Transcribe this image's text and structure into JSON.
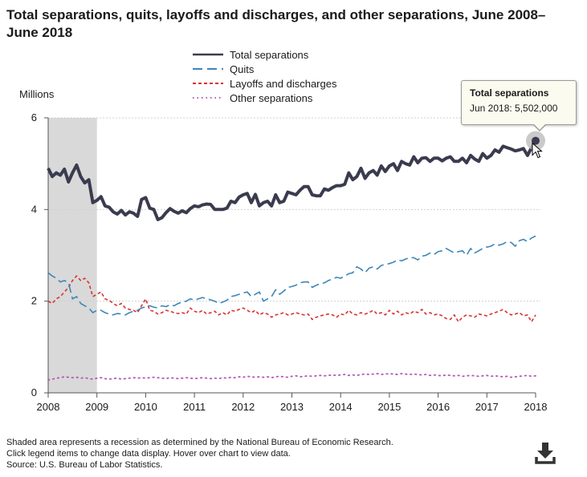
{
  "title": "Total separations, quits, layoffs and discharges, and other separations, June 2008–June 2018",
  "chart_data": {
    "type": "line",
    "ylabel": "Millions",
    "ylim": [
      0,
      6
    ],
    "xlim": [
      2008,
      2018
    ],
    "y_ticks": [
      "0",
      "2",
      "4",
      "6"
    ],
    "x_ticks": [
      "2008",
      "2009",
      "2010",
      "2011",
      "2012",
      "2013",
      "2014",
      "2015",
      "2016",
      "2017",
      "2018"
    ],
    "recession": {
      "start": 2008.0,
      "end": 2009.0
    },
    "series": [
      {
        "name": "Total separations",
        "color": "#3b3b4f",
        "values": [
          4.9,
          4.72,
          4.8,
          4.75,
          4.88,
          4.6,
          4.8,
          4.97,
          4.72,
          4.58,
          4.65,
          4.15,
          4.2,
          4.28,
          4.08,
          4.05,
          3.95,
          3.9,
          3.98,
          3.88,
          3.95,
          3.92,
          3.85,
          4.22,
          4.26,
          4.03,
          4.0,
          3.78,
          3.82,
          3.93,
          4.02,
          3.96,
          3.92,
          3.97,
          3.93,
          4.02,
          4.08,
          4.06,
          4.1,
          4.12,
          4.11,
          4.0,
          4.0,
          4.0,
          4.03,
          4.18,
          4.15,
          4.27,
          4.32,
          4.35,
          4.15,
          4.33,
          4.08,
          4.15,
          4.18,
          4.08,
          4.32,
          4.15,
          4.18,
          4.38,
          4.35,
          4.32,
          4.42,
          4.5,
          4.5,
          4.32,
          4.3,
          4.3,
          4.45,
          4.42,
          4.48,
          4.52,
          4.52,
          4.55,
          4.8,
          4.65,
          4.72,
          4.9,
          4.68,
          4.8,
          4.85,
          4.75,
          4.95,
          4.83,
          4.95,
          5.0,
          4.85,
          5.05,
          5.0,
          4.97,
          5.15,
          5.02,
          5.12,
          5.13,
          5.05,
          5.12,
          5.12,
          5.06,
          5.12,
          5.15,
          5.05,
          5.05,
          5.12,
          5.02,
          5.18,
          5.1,
          5.05,
          5.22,
          5.12,
          5.18,
          5.3,
          5.25,
          5.38,
          5.35,
          5.32,
          5.28,
          5.3,
          5.33,
          5.18,
          5.35,
          5.5
        ]
      },
      {
        "name": "Quits",
        "color": "#3c87b8",
        "values": [
          2.62,
          2.55,
          2.5,
          2.42,
          2.45,
          2.4,
          2.05,
          2.1,
          1.95,
          1.9,
          1.85,
          1.75,
          1.8,
          1.8,
          1.75,
          1.72,
          1.7,
          1.73,
          1.72,
          1.7,
          1.75,
          1.78,
          1.8,
          1.85,
          1.88,
          1.9,
          1.87,
          1.85,
          1.9,
          1.88,
          1.92,
          1.9,
          1.95,
          1.98,
          2.0,
          2.05,
          2.02,
          2.05,
          2.08,
          2.05,
          2.03,
          2.0,
          1.95,
          1.98,
          2.02,
          2.1,
          2.12,
          2.15,
          2.18,
          2.2,
          2.1,
          2.15,
          2.2,
          2.0,
          2.05,
          2.1,
          2.25,
          2.15,
          2.22,
          2.3,
          2.32,
          2.35,
          2.4,
          2.42,
          2.42,
          2.3,
          2.35,
          2.38,
          2.4,
          2.45,
          2.48,
          2.52,
          2.5,
          2.55,
          2.6,
          2.62,
          2.75,
          2.7,
          2.62,
          2.72,
          2.75,
          2.7,
          2.78,
          2.8,
          2.82,
          2.85,
          2.9,
          2.88,
          2.92,
          2.95,
          2.95,
          2.9,
          2.98,
          3.0,
          3.05,
          3.02,
          3.08,
          3.1,
          3.15,
          3.1,
          3.05,
          3.08,
          3.1,
          3.0,
          3.15,
          3.05,
          3.1,
          3.15,
          3.18,
          3.2,
          3.25,
          3.22,
          3.25,
          3.3,
          3.28,
          3.2,
          3.32,
          3.35,
          3.3,
          3.38,
          3.42
        ]
      },
      {
        "name": "Layoffs and discharges",
        "color": "#d93131",
        "values": [
          2.0,
          1.95,
          2.05,
          2.1,
          2.2,
          2.3,
          2.45,
          2.55,
          2.45,
          2.5,
          2.4,
          2.1,
          2.15,
          2.2,
          2.05,
          2.02,
          1.95,
          1.9,
          1.95,
          1.85,
          1.82,
          1.8,
          1.75,
          1.9,
          2.05,
          1.8,
          1.78,
          1.72,
          1.75,
          1.8,
          1.78,
          1.75,
          1.73,
          1.75,
          1.72,
          1.85,
          1.78,
          1.75,
          1.8,
          1.72,
          1.75,
          1.78,
          1.7,
          1.75,
          1.7,
          1.8,
          1.78,
          1.82,
          1.85,
          1.8,
          1.75,
          1.8,
          1.7,
          1.75,
          1.72,
          1.65,
          1.7,
          1.72,
          1.75,
          1.7,
          1.72,
          1.75,
          1.72,
          1.7,
          1.72,
          1.6,
          1.65,
          1.68,
          1.7,
          1.72,
          1.7,
          1.65,
          1.72,
          1.7,
          1.8,
          1.72,
          1.7,
          1.75,
          1.72,
          1.75,
          1.8,
          1.72,
          1.75,
          1.7,
          1.8,
          1.72,
          1.78,
          1.7,
          1.75,
          1.72,
          1.78,
          1.75,
          1.82,
          1.72,
          1.75,
          1.7,
          1.72,
          1.68,
          1.62,
          1.6,
          1.7,
          1.55,
          1.65,
          1.7,
          1.68,
          1.65,
          1.72,
          1.7,
          1.68,
          1.72,
          1.75,
          1.78,
          1.82,
          1.75,
          1.7,
          1.72,
          1.75,
          1.68,
          1.7,
          1.55,
          1.7
        ]
      },
      {
        "name": "Other separations",
        "color": "#b854b8",
        "values": [
          0.28,
          0.3,
          0.32,
          0.33,
          0.35,
          0.34,
          0.33,
          0.34,
          0.32,
          0.33,
          0.31,
          0.3,
          0.32,
          0.33,
          0.31,
          0.3,
          0.31,
          0.32,
          0.3,
          0.31,
          0.32,
          0.33,
          0.32,
          0.33,
          0.32,
          0.33,
          0.34,
          0.33,
          0.32,
          0.31,
          0.33,
          0.32,
          0.31,
          0.32,
          0.33,
          0.32,
          0.31,
          0.32,
          0.33,
          0.32,
          0.31,
          0.32,
          0.31,
          0.33,
          0.32,
          0.34,
          0.33,
          0.35,
          0.34,
          0.36,
          0.35,
          0.34,
          0.35,
          0.34,
          0.35,
          0.33,
          0.35,
          0.36,
          0.35,
          0.34,
          0.36,
          0.37,
          0.35,
          0.36,
          0.37,
          0.36,
          0.37,
          0.38,
          0.37,
          0.38,
          0.39,
          0.38,
          0.39,
          0.4,
          0.38,
          0.39,
          0.38,
          0.4,
          0.41,
          0.4,
          0.41,
          0.42,
          0.4,
          0.41,
          0.42,
          0.41,
          0.4,
          0.42,
          0.41,
          0.4,
          0.41,
          0.4,
          0.39,
          0.4,
          0.38,
          0.39,
          0.38,
          0.37,
          0.39,
          0.38,
          0.37,
          0.38,
          0.36,
          0.37,
          0.38,
          0.37,
          0.36,
          0.37,
          0.38,
          0.36,
          0.37,
          0.36,
          0.35,
          0.36,
          0.34,
          0.35,
          0.36,
          0.37,
          0.38,
          0.36,
          0.37
        ]
      }
    ]
  },
  "tooltip": {
    "series": "Total separations",
    "label": "Jun 2018: 5,502,000"
  },
  "footnotes": [
    "Shaded area represents a recession as determined by the National Bureau of Economic Research.",
    "Click legend items to change data display. Hover over chart to view data.",
    "Source: U.S. Bureau of Labor Statistics."
  ],
  "download_icon": "download-icon"
}
